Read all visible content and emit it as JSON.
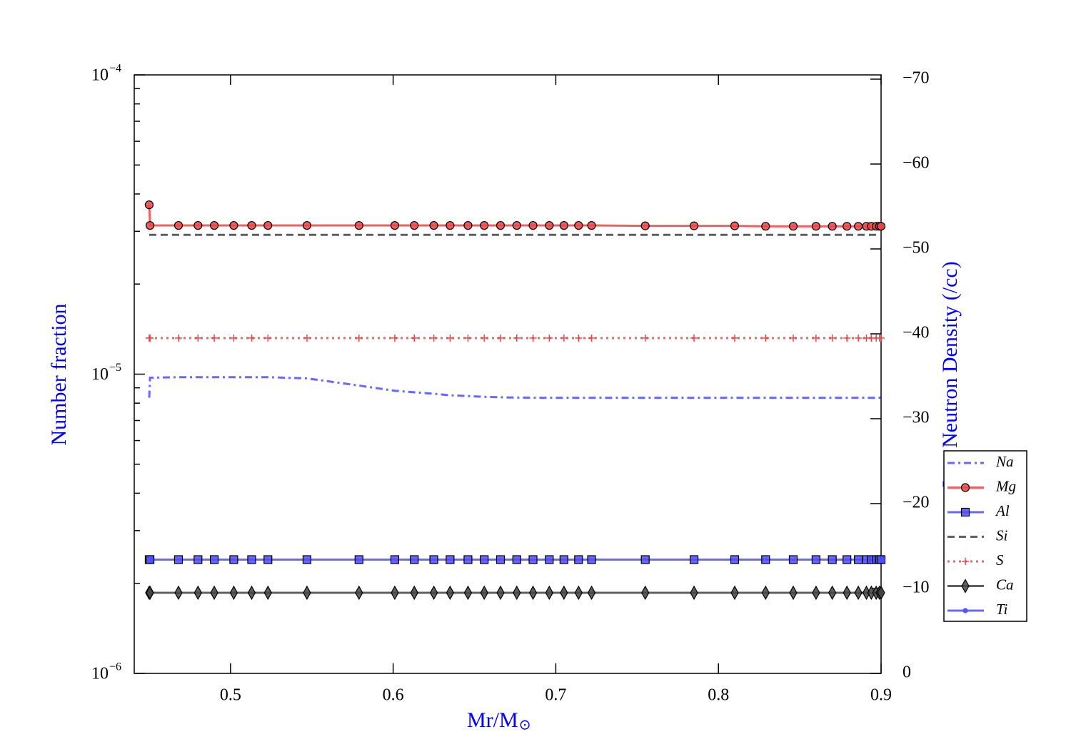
{
  "chart_data": {
    "type": "line",
    "x_label": "Mr/M",
    "x_label_sub": "⊙",
    "y_label": "Number fraction",
    "y2_label": "Log Neutron Density (/cc)",
    "x": [
      0.45,
      0.4505,
      0.468,
      0.48,
      0.49,
      0.502,
      0.513,
      0.523,
      0.547,
      0.579,
      0.601,
      0.613,
      0.625,
      0.635,
      0.646,
      0.656,
      0.666,
      0.676,
      0.686,
      0.696,
      0.705,
      0.714,
      0.722,
      0.755,
      0.785,
      0.81,
      0.829,
      0.846,
      0.86,
      0.87,
      0.879,
      0.886,
      0.891,
      0.894,
      0.897,
      0.899,
      0.9
    ],
    "series": [
      {
        "name": "Na",
        "color": "#4d4dff",
        "linestyle": "dashdot",
        "marker": "none",
        "values": [
          8.34e-06,
          9.73e-06,
          9.77e-06,
          9.77e-06,
          9.77e-06,
          9.77e-06,
          9.77e-06,
          9.77e-06,
          9.68e-06,
          9.16e-06,
          8.8e-06,
          8.7e-06,
          8.6e-06,
          8.5e-06,
          8.45e-06,
          8.4e-06,
          8.37e-06,
          8.35e-06,
          8.34e-06,
          8.34e-06,
          8.34e-06,
          8.34e-06,
          8.34e-06,
          8.34e-06,
          8.34e-06,
          8.34e-06,
          8.34e-06,
          8.34e-06,
          8.34e-06,
          8.34e-06,
          8.34e-06,
          8.34e-06,
          8.34e-06,
          8.34e-06,
          8.34e-06,
          8.34e-06,
          8.34e-06
        ]
      },
      {
        "name": "Mg",
        "color": "#ee4444",
        "linestyle": "solid",
        "marker": "circle",
        "values": [
          3.68e-05,
          3.14e-05,
          3.14e-05,
          3.14e-05,
          3.14e-05,
          3.14e-05,
          3.14e-05,
          3.14e-05,
          3.14e-05,
          3.14e-05,
          3.14e-05,
          3.14e-05,
          3.14e-05,
          3.14e-05,
          3.14e-05,
          3.14e-05,
          3.14e-05,
          3.14e-05,
          3.14e-05,
          3.14e-05,
          3.14e-05,
          3.14e-05,
          3.14e-05,
          3.13e-05,
          3.13e-05,
          3.13e-05,
          3.12e-05,
          3.12e-05,
          3.12e-05,
          3.12e-05,
          3.12e-05,
          3.12e-05,
          3.12e-05,
          3.12e-05,
          3.12e-05,
          3.12e-05,
          3.12e-05
        ]
      },
      {
        "name": "Al",
        "color": "#4d4dff",
        "linestyle": "solid",
        "marker": "square",
        "values": [
          2.4e-06,
          2.4e-06,
          2.4e-06,
          2.4e-06,
          2.4e-06,
          2.4e-06,
          2.4e-06,
          2.4e-06,
          2.4e-06,
          2.4e-06,
          2.4e-06,
          2.4e-06,
          2.4e-06,
          2.4e-06,
          2.4e-06,
          2.4e-06,
          2.4e-06,
          2.4e-06,
          2.4e-06,
          2.4e-06,
          2.4e-06,
          2.4e-06,
          2.4e-06,
          2.4e-06,
          2.4e-06,
          2.4e-06,
          2.4e-06,
          2.4e-06,
          2.4e-06,
          2.4e-06,
          2.4e-06,
          2.4e-06,
          2.4e-06,
          2.4e-06,
          2.4e-06,
          2.4e-06,
          2.4e-06
        ]
      },
      {
        "name": "Si",
        "color": "#444444",
        "linestyle": "dashed",
        "marker": "none",
        "values": [
          2.92e-05,
          2.92e-05,
          2.92e-05,
          2.92e-05,
          2.92e-05,
          2.92e-05,
          2.92e-05,
          2.92e-05,
          2.92e-05,
          2.92e-05,
          2.92e-05,
          2.92e-05,
          2.92e-05,
          2.92e-05,
          2.92e-05,
          2.92e-05,
          2.92e-05,
          2.92e-05,
          2.92e-05,
          2.92e-05,
          2.92e-05,
          2.92e-05,
          2.92e-05,
          2.92e-05,
          2.92e-05,
          2.92e-05,
          2.92e-05,
          2.92e-05,
          2.92e-05,
          2.92e-05,
          2.92e-05,
          2.92e-05,
          2.92e-05,
          2.92e-05,
          2.92e-05,
          2.92e-05,
          2.92e-05
        ]
      },
      {
        "name": "S",
        "color": "#ee4444",
        "linestyle": "dotted",
        "marker": "plus",
        "values": [
          1.32e-05,
          1.32e-05,
          1.32e-05,
          1.32e-05,
          1.32e-05,
          1.32e-05,
          1.32e-05,
          1.32e-05,
          1.32e-05,
          1.32e-05,
          1.32e-05,
          1.32e-05,
          1.32e-05,
          1.32e-05,
          1.32e-05,
          1.32e-05,
          1.32e-05,
          1.32e-05,
          1.32e-05,
          1.32e-05,
          1.32e-05,
          1.32e-05,
          1.32e-05,
          1.32e-05,
          1.32e-05,
          1.32e-05,
          1.32e-05,
          1.32e-05,
          1.32e-05,
          1.32e-05,
          1.32e-05,
          1.32e-05,
          1.32e-05,
          1.32e-05,
          1.32e-05,
          1.32e-05,
          1.32e-05
        ]
      },
      {
        "name": "Ca",
        "color": "#444444",
        "linestyle": "solid",
        "marker": "diamond",
        "values": [
          1.86e-06,
          1.86e-06,
          1.86e-06,
          1.86e-06,
          1.86e-06,
          1.86e-06,
          1.86e-06,
          1.86e-06,
          1.86e-06,
          1.86e-06,
          1.86e-06,
          1.86e-06,
          1.86e-06,
          1.86e-06,
          1.86e-06,
          1.86e-06,
          1.86e-06,
          1.86e-06,
          1.86e-06,
          1.86e-06,
          1.86e-06,
          1.86e-06,
          1.86e-06,
          1.86e-06,
          1.86e-06,
          1.86e-06,
          1.86e-06,
          1.86e-06,
          1.86e-06,
          1.86e-06,
          1.86e-06,
          1.86e-06,
          1.86e-06,
          1.86e-06,
          1.86e-06,
          1.86e-06,
          1.86e-06
        ]
      },
      {
        "name": "Ti",
        "color": "#4d4dff",
        "linestyle": "solid",
        "marker": "point",
        "axis": "y2",
        "values": [
          null,
          null,
          null,
          null,
          null,
          null,
          null,
          null,
          null,
          null,
          null,
          null,
          null,
          null,
          null,
          null,
          null,
          null,
          null,
          null,
          null,
          null,
          null,
          null,
          null,
          null,
          null,
          null,
          null,
          null,
          null,
          null,
          null,
          null,
          null,
          null,
          null
        ]
      }
    ],
    "xlim": [
      0.4408,
      0.9
    ],
    "xticks": [
      0.5,
      0.6,
      0.7,
      0.8,
      0.9
    ],
    "ylim": [
      1e-06,
      0.0001
    ],
    "ylog": true,
    "yticks": [
      {
        "value": 1e-06,
        "label": "10",
        "label_exp": "−6"
      },
      {
        "value": 1e-05,
        "label": "10",
        "label_exp": "−5"
      },
      {
        "value": 0.0001,
        "label": "10",
        "label_exp": "−4"
      }
    ],
    "yminorticks": [
      2e-06,
      3e-06,
      4e-06,
      5e-06,
      6e-06,
      7e-06,
      8e-06,
      9e-06,
      2e-05,
      3e-05,
      4e-05,
      5e-05,
      6e-05,
      7e-05,
      8e-05,
      9e-05
    ],
    "y2lim": [
      0,
      -70.5
    ],
    "y2ticks": [
      0,
      {
        "value": -10,
        "label": "−10"
      },
      {
        "value": -20,
        "label": "−20"
      },
      {
        "value": -30,
        "label": "−30"
      },
      {
        "value": -40,
        "label": "−40"
      },
      {
        "value": -50,
        "label": "−50"
      },
      {
        "value": -60,
        "label": "−60"
      },
      {
        "value": -70,
        "label": "−70"
      }
    ],
    "legend": "right",
    "grid": false
  }
}
